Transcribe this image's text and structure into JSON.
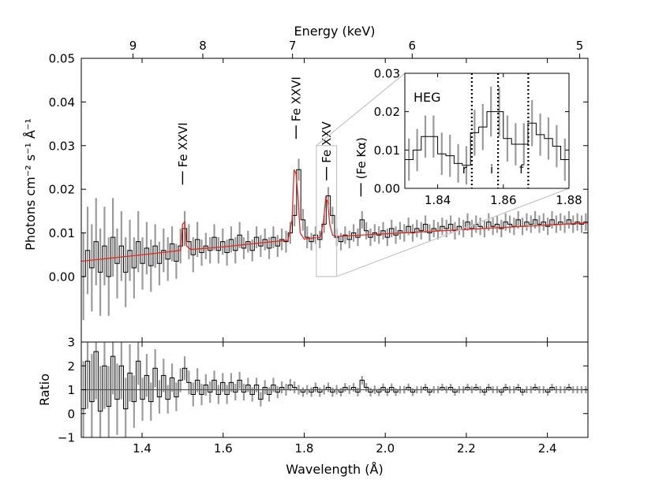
{
  "chart_data": [
    {
      "id": "spectrum",
      "type": "line",
      "ylabel": "Photons cm⁻² s⁻¹ Å⁻¹",
      "top_axis_label": "Energy (keV)",
      "xlim": [
        1.25,
        2.5
      ],
      "ylim": [
        -0.015,
        0.05
      ],
      "x_ticks": [
        1.4,
        1.6,
        1.8,
        2.0,
        2.2,
        2.4
      ],
      "y_ticks": [
        0.0,
        0.01,
        0.02,
        0.03,
        0.04,
        0.05
      ],
      "y_tick_labels": [
        "0.00",
        "0.01",
        "0.02",
        "0.03",
        "0.04",
        "0.05"
      ],
      "top_ticks": [
        {
          "label": "9",
          "wavelength": 1.3776
        },
        {
          "label": "8",
          "wavelength": 1.5498
        },
        {
          "label": "7",
          "wavelength": 1.7712
        },
        {
          "label": "6",
          "wavelength": 2.0664
        },
        {
          "label": "5",
          "wavelength": 2.4797
        }
      ],
      "annotations": [
        {
          "text": "Fe XXVI",
          "x": 1.5,
          "y": 0.0205
        },
        {
          "text": "Fe XXVI",
          "x": 1.78,
          "y": 0.031
        },
        {
          "text": "Fe XXV",
          "x": 1.855,
          "y": 0.0215
        },
        {
          "text": "(Fe Kα)",
          "x": 1.94,
          "y": 0.0178
        }
      ],
      "zoom_box": {
        "x": [
          1.83,
          1.88
        ],
        "y": [
          0.0,
          0.03
        ]
      },
      "series": [
        {
          "kind": "data",
          "x": [
            1.25,
            1.2604,
            1.2708,
            1.2812,
            1.2917,
            1.3021,
            1.3125,
            1.3229,
            1.3333,
            1.3438,
            1.3542,
            1.3646,
            1.375,
            1.3854,
            1.3958,
            1.4062,
            1.4167,
            1.4271,
            1.4375,
            1.4479,
            1.4583,
            1.4688,
            1.4792,
            1.4896,
            1.5,
            1.5104,
            1.5208,
            1.5312,
            1.5417,
            1.5521,
            1.5625,
            1.5729,
            1.5833,
            1.5938,
            1.6042,
            1.6146,
            1.625,
            1.6354,
            1.6458,
            1.6562,
            1.6667,
            1.6771,
            1.6875,
            1.6979,
            1.7083,
            1.7188,
            1.7292,
            1.7396,
            1.75,
            1.7604,
            1.7708,
            1.7812,
            1.7917,
            1.8021,
            1.8125,
            1.8229,
            1.8333,
            1.8438,
            1.8542,
            1.8646,
            1.875,
            1.8854,
            1.8958,
            1.9062,
            1.9167,
            1.9271,
            1.9375,
            1.9479,
            1.9583,
            1.9688,
            1.9792,
            1.9896,
            2.0,
            2.0104,
            2.0208,
            2.0312,
            2.0417,
            2.0521,
            2.0625,
            2.0729,
            2.0833,
            2.0938,
            2.1042,
            2.1146,
            2.125,
            2.1354,
            2.1458,
            2.1562,
            2.1667,
            2.1771,
            2.1875,
            2.1979,
            2.2083,
            2.2188,
            2.2292,
            2.2396,
            2.25,
            2.2604,
            2.2708,
            2.2812,
            2.2917,
            2.3021,
            2.3125,
            2.3229,
            2.3333,
            2.3438,
            2.3542,
            2.3646,
            2.375,
            2.3854,
            2.3958,
            2.4062,
            2.4167,
            2.4271,
            2.4375,
            2.4479,
            2.4583,
            2.4688,
            2.4792,
            2.4896
          ],
          "y": [
            0.0,
            0.006,
            0.002,
            0.008,
            0.001,
            0.007,
            0.0,
            0.009,
            0.003,
            0.007,
            0.001,
            0.006,
            0.002,
            0.008,
            0.003,
            0.0065,
            0.0025,
            0.007,
            0.003,
            0.006,
            0.004,
            0.0075,
            0.0035,
            0.007,
            0.011,
            0.008,
            0.005,
            0.0085,
            0.0055,
            0.007,
            0.006,
            0.009,
            0.006,
            0.008,
            0.0055,
            0.0085,
            0.006,
            0.0095,
            0.0065,
            0.008,
            0.006,
            0.009,
            0.007,
            0.0085,
            0.0065,
            0.009,
            0.007,
            0.0085,
            0.008,
            0.01,
            0.014,
            0.0245,
            0.013,
            0.009,
            0.008,
            0.0095,
            0.0085,
            0.012,
            0.0185,
            0.014,
            0.009,
            0.008,
            0.0095,
            0.0085,
            0.01,
            0.009,
            0.013,
            0.0105,
            0.009,
            0.01,
            0.0095,
            0.0105,
            0.009,
            0.011,
            0.0095,
            0.0105,
            0.01,
            0.0115,
            0.01,
            0.011,
            0.0105,
            0.012,
            0.01,
            0.011,
            0.0105,
            0.0115,
            0.011,
            0.012,
            0.0105,
            0.0115,
            0.011,
            0.0125,
            0.011,
            0.012,
            0.0115,
            0.011,
            0.0125,
            0.0115,
            0.012,
            0.011,
            0.0125,
            0.012,
            0.0115,
            0.013,
            0.0115,
            0.0125,
            0.012,
            0.013,
            0.012,
            0.0125,
            0.0115,
            0.013,
            0.012,
            0.0125,
            0.012,
            0.013,
            0.012,
            0.0125,
            0.012,
            0.0125
          ],
          "err": [
            0.01,
            0.01,
            0.01,
            0.01,
            0.01,
            0.009,
            0.009,
            0.009,
            0.008,
            0.008,
            0.008,
            0.007,
            0.007,
            0.007,
            0.006,
            0.006,
            0.006,
            0.005,
            0.005,
            0.005,
            0.005,
            0.004,
            0.004,
            0.004,
            0.004,
            0.004,
            0.004,
            0.004,
            0.003,
            0.003,
            0.003,
            0.003,
            0.003,
            0.003,
            0.003,
            0.003,
            0.003,
            0.003,
            0.0025,
            0.0025,
            0.0025,
            0.0025,
            0.0025,
            0.0025,
            0.0025,
            0.0025,
            0.0025,
            0.0025,
            0.0025,
            0.0025,
            0.0025,
            0.0025,
            0.0025,
            0.0025,
            0.002,
            0.002,
            0.002,
            0.002,
            0.002,
            0.002,
            0.002,
            0.002,
            0.002,
            0.002,
            0.002,
            0.002,
            0.002,
            0.002,
            0.002,
            0.002,
            0.002,
            0.002,
            0.002,
            0.002,
            0.002,
            0.002,
            0.002,
            0.002,
            0.002,
            0.002,
            0.002,
            0.002,
            0.002,
            0.002,
            0.002,
            0.002,
            0.002,
            0.002,
            0.002,
            0.002,
            0.002,
            0.002,
            0.002,
            0.002,
            0.002,
            0.002,
            0.002,
            0.002,
            0.002,
            0.002,
            0.002,
            0.002,
            0.002,
            0.002,
            0.002,
            0.002,
            0.002,
            0.002,
            0.002,
            0.002,
            0.002,
            0.002,
            0.002,
            0.002,
            0.002,
            0.002,
            0.002,
            0.002,
            0.002,
            0.002
          ]
        },
        {
          "kind": "model",
          "color": "#e8281e",
          "x": [
            1.25,
            1.35,
            1.45,
            1.495,
            1.5,
            1.505,
            1.51,
            1.52,
            1.6,
            1.7,
            1.76,
            1.77,
            1.775,
            1.78,
            1.785,
            1.79,
            1.8,
            1.84,
            1.848,
            1.853,
            1.858,
            1.863,
            1.87,
            1.88,
            2.0,
            2.2,
            2.4,
            2.5
          ],
          "y": [
            0.0035,
            0.0045,
            0.0055,
            0.006,
            0.012,
            0.0125,
            0.007,
            0.0062,
            0.0068,
            0.0078,
            0.0083,
            0.013,
            0.0245,
            0.0235,
            0.018,
            0.01,
            0.0086,
            0.009,
            0.013,
            0.018,
            0.017,
            0.012,
            0.0095,
            0.0092,
            0.0098,
            0.0108,
            0.0118,
            0.0123
          ]
        }
      ]
    },
    {
      "id": "ratio",
      "type": "line",
      "xlabel": "Wavelength (Å)",
      "ylabel": "Ratio",
      "xlim": [
        1.25,
        2.5
      ],
      "ylim": [
        -1,
        3
      ],
      "x_ticks": [
        1.4,
        1.6,
        1.8,
        2.0,
        2.2,
        2.4
      ],
      "x_tick_labels": [
        "1.4",
        "1.6",
        "1.8",
        "2.0",
        "2.2",
        "2.4"
      ],
      "y_ticks": [
        -1,
        0,
        1,
        2,
        3
      ],
      "y_tick_labels": [
        "−1",
        "0",
        "1",
        "2",
        "3"
      ],
      "reference_line": 1,
      "series": [
        {
          "kind": "data",
          "x": [
            1.25,
            1.2604,
            1.2708,
            1.2812,
            1.2917,
            1.3021,
            1.3125,
            1.3229,
            1.3333,
            1.3438,
            1.3542,
            1.3646,
            1.375,
            1.3854,
            1.3958,
            1.4062,
            1.4167,
            1.4271,
            1.4375,
            1.4479,
            1.4583,
            1.4688,
            1.4792,
            1.4896,
            1.5,
            1.5104,
            1.5208,
            1.5312,
            1.5417,
            1.5521,
            1.5625,
            1.5729,
            1.5833,
            1.5938,
            1.6042,
            1.6146,
            1.625,
            1.6354,
            1.6458,
            1.6562,
            1.6667,
            1.6771,
            1.6875,
            1.6979,
            1.7083,
            1.7188,
            1.7292,
            1.7396,
            1.75,
            1.7604,
            1.7708,
            1.7812,
            1.7917,
            1.8021,
            1.8125,
            1.8229,
            1.8333,
            1.8438,
            1.8542,
            1.8646,
            1.875,
            1.8854,
            1.8958,
            1.9062,
            1.9167,
            1.9271,
            1.9375,
            1.9479,
            1.9583,
            1.9688,
            1.9792,
            1.9896,
            2.0,
            2.0104,
            2.0208,
            2.0312,
            2.0417,
            2.0521,
            2.0625,
            2.0729,
            2.0833,
            2.0938,
            2.1042,
            2.1146,
            2.125,
            2.1354,
            2.1458,
            2.1562,
            2.1667,
            2.1771,
            2.1875,
            2.1979,
            2.2083,
            2.2188,
            2.2292,
            2.2396,
            2.25,
            2.2604,
            2.2708,
            2.2812,
            2.2917,
            2.3021,
            2.3125,
            2.3229,
            2.3333,
            2.3438,
            2.3542,
            2.3646,
            2.375,
            2.3854,
            2.3958,
            2.4062,
            2.4167,
            2.4271,
            2.4375,
            2.4479,
            2.4583,
            2.4688,
            2.4792,
            2.4896
          ],
          "y": [
            0.2,
            2.2,
            0.5,
            2.6,
            0.1,
            2.0,
            0.3,
            2.4,
            0.6,
            2.0,
            0.2,
            1.7,
            0.5,
            2.2,
            0.6,
            1.6,
            0.5,
            1.9,
            0.7,
            1.6,
            0.6,
            1.5,
            0.7,
            1.4,
            1.9,
            1.3,
            0.8,
            1.4,
            0.8,
            1.2,
            0.9,
            1.4,
            0.8,
            1.3,
            0.8,
            1.3,
            0.9,
            1.4,
            0.9,
            1.2,
            0.8,
            1.2,
            0.6,
            1.1,
            0.8,
            1.2,
            0.9,
            1.1,
            1.0,
            1.2,
            1.1,
            1.0,
            0.9,
            1.0,
            0.9,
            1.1,
            0.9,
            1.0,
            1.1,
            0.9,
            1.0,
            0.9,
            1.1,
            1.0,
            1.1,
            0.9,
            1.4,
            1.1,
            0.9,
            1.0,
            0.9,
            1.1,
            0.9,
            1.1,
            0.9,
            1.0,
            1.0,
            1.1,
            0.9,
            1.0,
            1.0,
            1.1,
            0.9,
            1.0,
            1.0,
            1.1,
            1.0,
            1.1,
            0.9,
            1.0,
            1.0,
            1.1,
            1.0,
            1.1,
            1.0,
            0.9,
            1.1,
            1.0,
            1.0,
            0.9,
            1.1,
            1.0,
            1.0,
            1.1,
            0.9,
            1.0,
            1.0,
            1.1,
            1.0,
            1.0,
            0.9,
            1.1,
            1.0,
            1.0,
            1.0,
            1.1,
            1.0,
            1.0,
            1.0,
            1.0
          ],
          "err": [
            2.0,
            2.0,
            2.0,
            2.0,
            1.9,
            1.8,
            1.7,
            1.6,
            1.5,
            1.4,
            1.3,
            1.2,
            1.1,
            1.0,
            0.9,
            0.9,
            0.8,
            0.8,
            0.7,
            0.7,
            0.6,
            0.6,
            0.6,
            0.5,
            0.5,
            0.5,
            0.5,
            0.5,
            0.45,
            0.45,
            0.45,
            0.4,
            0.4,
            0.4,
            0.4,
            0.4,
            0.35,
            0.35,
            0.35,
            0.3,
            0.3,
            0.3,
            0.3,
            0.3,
            0.3,
            0.3,
            0.25,
            0.25,
            0.25,
            0.25,
            0.25,
            0.2,
            0.2,
            0.2,
            0.2,
            0.2,
            0.2,
            0.2,
            0.2,
            0.2,
            0.2,
            0.18,
            0.18,
            0.18,
            0.18,
            0.18,
            0.18,
            0.18,
            0.18,
            0.18,
            0.16,
            0.16,
            0.16,
            0.16,
            0.16,
            0.16,
            0.16,
            0.16,
            0.16,
            0.15,
            0.15,
            0.15,
            0.15,
            0.15,
            0.15,
            0.15,
            0.15,
            0.15,
            0.15,
            0.15,
            0.15,
            0.15,
            0.15,
            0.15,
            0.15,
            0.15,
            0.15,
            0.15,
            0.15,
            0.15,
            0.15,
            0.15,
            0.15,
            0.15,
            0.15,
            0.15,
            0.15,
            0.15,
            0.15,
            0.15,
            0.15,
            0.15,
            0.15,
            0.15,
            0.15,
            0.15,
            0.15,
            0.15,
            0.15,
            0.15
          ]
        }
      ]
    },
    {
      "id": "inset",
      "type": "line",
      "title": "HEG",
      "xlim": [
        1.83,
        1.88
      ],
      "ylim": [
        0.0,
        0.03
      ],
      "x_ticks": [
        1.84,
        1.86,
        1.88
      ],
      "x_tick_labels": [
        "1.84",
        "1.86",
        "1.88"
      ],
      "y_ticks": [
        0.0,
        0.01,
        0.02,
        0.03
      ],
      "y_tick_labels": [
        "0.00",
        "0.01",
        "0.02",
        "0.03"
      ],
      "vlines": [
        {
          "label": "r",
          "x": 1.8504
        },
        {
          "label": "i",
          "x": 1.8584
        },
        {
          "label": "f",
          "x": 1.8676
        }
      ],
      "series": [
        {
          "kind": "data",
          "x": [
            1.83,
            1.8325,
            1.835,
            1.8375,
            1.84,
            1.8425,
            1.845,
            1.8475,
            1.85,
            1.8525,
            1.855,
            1.8575,
            1.86,
            1.8625,
            1.865,
            1.8675,
            1.87,
            1.8725,
            1.875,
            1.8775
          ],
          "y": [
            0.0075,
            0.01,
            0.0135,
            0.0135,
            0.009,
            0.0085,
            0.0065,
            0.006,
            0.0145,
            0.016,
            0.02,
            0.02,
            0.013,
            0.0115,
            0.0115,
            0.017,
            0.014,
            0.013,
            0.011,
            0.0075
          ],
          "err": [
            0.0055,
            0.0055,
            0.0055,
            0.0055,
            0.0055,
            0.0055,
            0.005,
            0.005,
            0.006,
            0.006,
            0.0065,
            0.0065,
            0.006,
            0.0055,
            0.0055,
            0.006,
            0.0055,
            0.0055,
            0.0055,
            0.0055
          ]
        }
      ]
    }
  ]
}
